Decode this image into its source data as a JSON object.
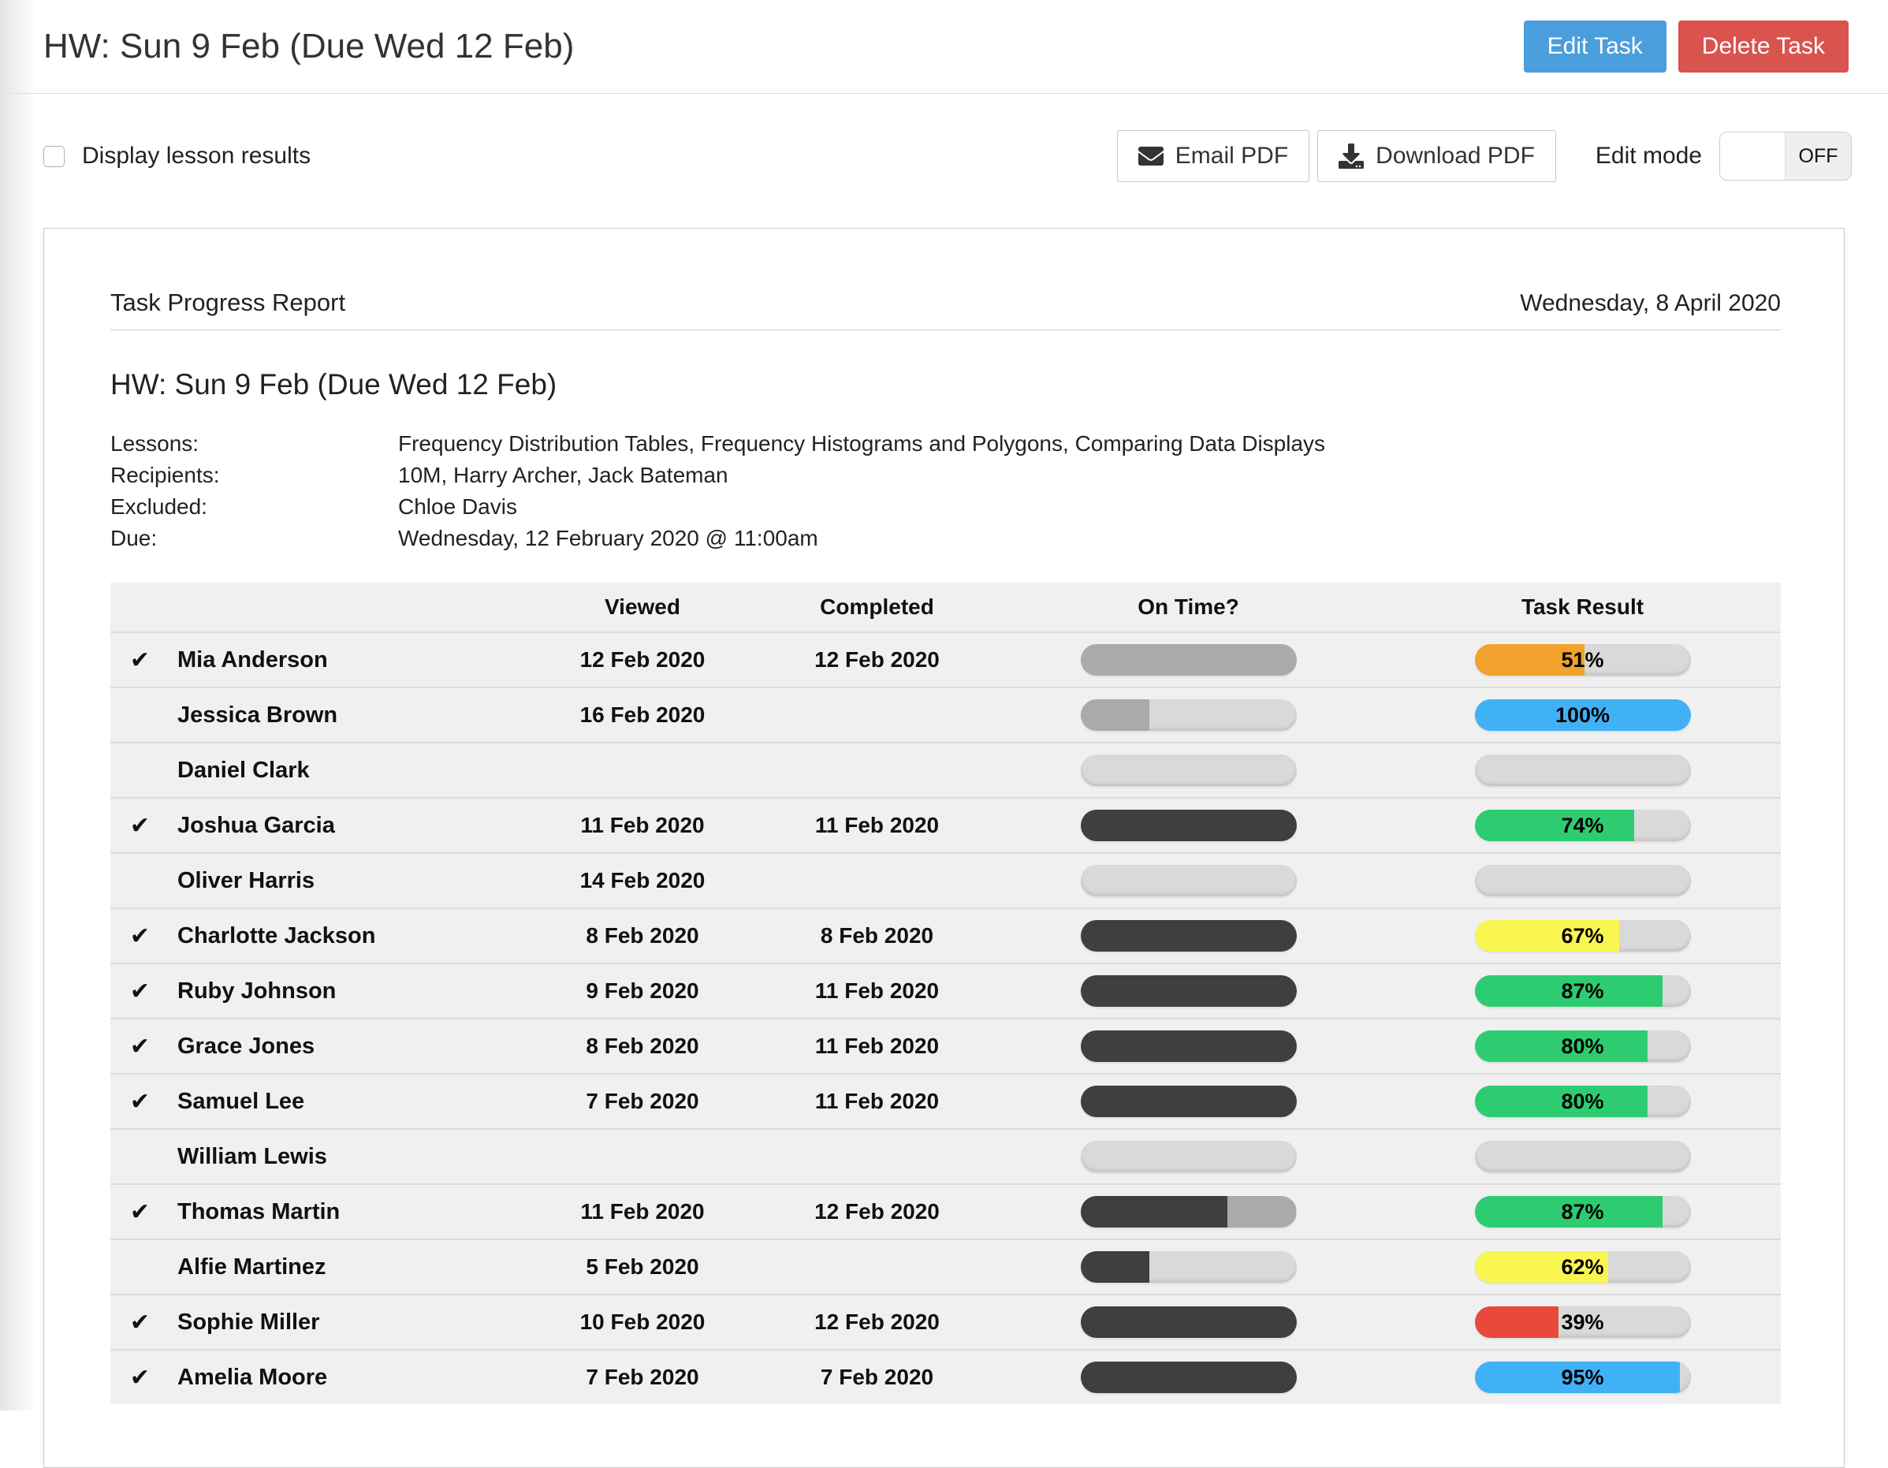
{
  "page": {
    "title": "HW: Sun 9 Feb (Due Wed 12 Feb)",
    "edit_task_label": "Edit Task",
    "delete_task_label": "Delete Task",
    "display_lesson_results_label": "Display lesson results",
    "email_pdf_label": "Email PDF",
    "download_pdf_label": "Download PDF",
    "edit_mode_label": "Edit mode",
    "edit_mode_state": "OFF"
  },
  "report": {
    "header": "Task Progress Report",
    "date": "Wednesday, 8 April 2020",
    "title": "HW: Sun 9 Feb (Due Wed 12 Feb)",
    "details": [
      {
        "label": "Lessons:",
        "value": "Frequency Distribution Tables, Frequency Histograms and Polygons, Comparing Data Displays"
      },
      {
        "label": "Recipients:",
        "value": "10M, Harry Archer, Jack Bateman"
      },
      {
        "label": "Excluded:",
        "value": "Chloe Davis"
      },
      {
        "label": "Due:",
        "value": "Wednesday, 12 February 2020 @ 11:00am"
      }
    ]
  },
  "colors": {
    "orange": "#f0a22c",
    "blue": "#41b1f5",
    "green": "#2ecc71",
    "yellow": "#f9f551",
    "red": "#e8493b",
    "dark": "#3f3f3f",
    "grey": "#aaaaaa",
    "empty": "#d9d9d9"
  },
  "table": {
    "columns": {
      "viewed": "Viewed",
      "completed": "Completed",
      "on_time": "On Time?",
      "task_result": "Task Result"
    },
    "rows": [
      {
        "checked": true,
        "name": "Mia Anderson",
        "viewed": "12 Feb 2020",
        "completed": "12 Feb 2020",
        "on_time": [
          {
            "pct": 100,
            "color": "grey"
          }
        ],
        "result": {
          "pct": 51,
          "label": "51%",
          "color": "orange"
        }
      },
      {
        "checked": false,
        "name": "Jessica Brown",
        "viewed": "16 Feb 2020",
        "completed": "",
        "on_time": [
          {
            "pct": 32,
            "color": "grey"
          }
        ],
        "result": {
          "pct": 100,
          "label": "100%",
          "color": "blue"
        }
      },
      {
        "checked": false,
        "name": "Daniel Clark",
        "viewed": "",
        "completed": "",
        "on_time": [],
        "result": null
      },
      {
        "checked": true,
        "name": "Joshua Garcia",
        "viewed": "11 Feb 2020",
        "completed": "11 Feb 2020",
        "on_time": [
          {
            "pct": 100,
            "color": "dark"
          }
        ],
        "result": {
          "pct": 74,
          "label": "74%",
          "color": "green"
        }
      },
      {
        "checked": false,
        "name": "Oliver Harris",
        "viewed": "14 Feb 2020",
        "completed": "",
        "on_time": [],
        "result": null
      },
      {
        "checked": true,
        "name": "Charlotte Jackson",
        "viewed": "8 Feb 2020",
        "completed": "8 Feb 2020",
        "on_time": [
          {
            "pct": 100,
            "color": "dark"
          }
        ],
        "result": {
          "pct": 67,
          "label": "67%",
          "color": "yellow"
        }
      },
      {
        "checked": true,
        "name": "Ruby Johnson",
        "viewed": "9 Feb 2020",
        "completed": "11 Feb 2020",
        "on_time": [
          {
            "pct": 100,
            "color": "dark"
          }
        ],
        "result": {
          "pct": 87,
          "label": "87%",
          "color": "green"
        }
      },
      {
        "checked": true,
        "name": "Grace Jones",
        "viewed": "8 Feb 2020",
        "completed": "11 Feb 2020",
        "on_time": [
          {
            "pct": 100,
            "color": "dark"
          }
        ],
        "result": {
          "pct": 80,
          "label": "80%",
          "color": "green"
        }
      },
      {
        "checked": true,
        "name": "Samuel Lee",
        "viewed": "7 Feb 2020",
        "completed": "11 Feb 2020",
        "on_time": [
          {
            "pct": 100,
            "color": "dark"
          }
        ],
        "result": {
          "pct": 80,
          "label": "80%",
          "color": "green"
        }
      },
      {
        "checked": false,
        "name": "William Lewis",
        "viewed": "",
        "completed": "",
        "on_time": [],
        "result": null
      },
      {
        "checked": true,
        "name": "Thomas Martin",
        "viewed": "11 Feb 2020",
        "completed": "12 Feb 2020",
        "on_time": [
          {
            "pct": 68,
            "color": "dark"
          },
          {
            "pct": 32,
            "color": "grey"
          }
        ],
        "result": {
          "pct": 87,
          "label": "87%",
          "color": "green"
        }
      },
      {
        "checked": false,
        "name": "Alfie Martinez",
        "viewed": "5 Feb 2020",
        "completed": "",
        "on_time": [
          {
            "pct": 32,
            "color": "dark"
          }
        ],
        "result": {
          "pct": 62,
          "label": "62%",
          "color": "yellow"
        }
      },
      {
        "checked": true,
        "name": "Sophie Miller",
        "viewed": "10 Feb 2020",
        "completed": "12 Feb 2020",
        "on_time": [
          {
            "pct": 100,
            "color": "dark"
          }
        ],
        "result": {
          "pct": 39,
          "label": "39%",
          "color": "red"
        }
      },
      {
        "checked": true,
        "name": "Amelia Moore",
        "viewed": "7 Feb 2020",
        "completed": "7 Feb 2020",
        "on_time": [
          {
            "pct": 100,
            "color": "dark"
          }
        ],
        "result": {
          "pct": 95,
          "label": "95%",
          "color": "blue"
        }
      }
    ]
  }
}
